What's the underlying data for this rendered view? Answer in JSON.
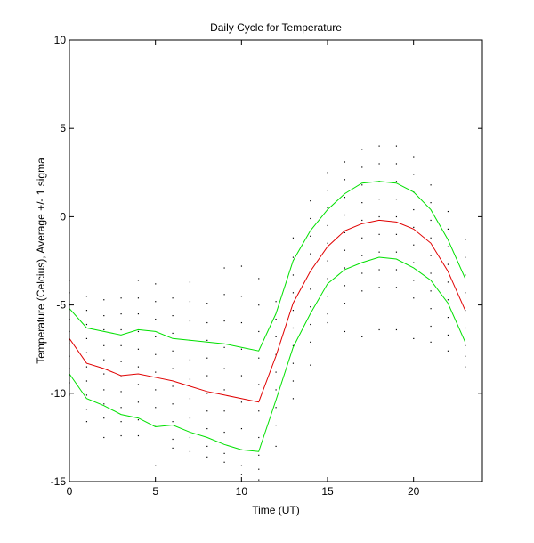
{
  "chart_data": {
    "type": "line",
    "title": "Daily Cycle for Temperature",
    "xlabel": "Time (UT)",
    "ylabel": "Temperature (Celcius), Average +/- 1 sigma",
    "xlim": [
      0,
      24
    ],
    "ylim": [
      -15,
      10
    ],
    "xticks": [
      0,
      5,
      10,
      15,
      20
    ],
    "yticks": [
      -15,
      -10,
      -5,
      0,
      5,
      10
    ],
    "grid": false,
    "x": [
      0,
      1,
      2,
      3,
      4,
      5,
      6,
      7,
      8,
      9,
      10,
      11,
      12,
      13,
      14,
      15,
      16,
      17,
      18,
      19,
      20,
      21,
      22,
      23
    ],
    "series": [
      {
        "color": "#00e000",
        "values": [
          -5.2,
          -6.3,
          -6.5,
          -6.7,
          -6.4,
          -6.5,
          -6.9,
          -7.0,
          -7.1,
          -7.2,
          -7.4,
          -7.6,
          -5.5,
          -2.5,
          -0.8,
          0.4,
          1.3,
          1.9,
          2.0,
          1.9,
          1.4,
          0.4,
          -1.3,
          -3.5
        ]
      },
      {
        "color": "#e00000",
        "values": [
          -6.9,
          -8.3,
          -8.6,
          -9.0,
          -8.9,
          -9.1,
          -9.3,
          -9.6,
          -9.9,
          -10.1,
          -10.3,
          -10.5,
          -7.9,
          -4.9,
          -3.1,
          -1.7,
          -0.8,
          -0.4,
          -0.2,
          -0.3,
          -0.7,
          -1.5,
          -3.1,
          -5.3
        ]
      },
      {
        "color": "#00e000",
        "values": [
          -8.9,
          -10.3,
          -10.7,
          -11.2,
          -11.4,
          -11.9,
          -11.8,
          -12.2,
          -12.5,
          -12.9,
          -13.2,
          -13.3,
          -10.4,
          -7.4,
          -5.5,
          -3.8,
          -3.0,
          -2.6,
          -2.3,
          -2.4,
          -2.9,
          -3.6,
          -4.9,
          -7.1
        ]
      }
    ],
    "scatter": {
      "color": "#000000",
      "points": [
        [
          0,
          -3.6
        ],
        [
          0,
          -4.3
        ],
        [
          0,
          -5.0
        ],
        [
          0,
          -5.8
        ],
        [
          0,
          -6.5
        ],
        [
          0,
          -7.2
        ],
        [
          0,
          -7.9
        ],
        [
          0,
          -8.6
        ],
        [
          0,
          -9.4
        ],
        [
          0,
          -10.1
        ],
        [
          1,
          -4.5
        ],
        [
          1,
          -5.3
        ],
        [
          1,
          -6.1
        ],
        [
          1,
          -6.9
        ],
        [
          1,
          -7.7
        ],
        [
          1,
          -8.5
        ],
        [
          1,
          -9.3
        ],
        [
          1,
          -10.1
        ],
        [
          1,
          -10.9
        ],
        [
          1,
          -11.6
        ],
        [
          2,
          -4.7
        ],
        [
          2,
          -5.6
        ],
        [
          2,
          -6.4
        ],
        [
          2,
          -7.3
        ],
        [
          2,
          -8.1
        ],
        [
          2,
          -8.9
        ],
        [
          2,
          -9.8
        ],
        [
          2,
          -10.6
        ],
        [
          2,
          -11.4
        ],
        [
          2,
          -12.5
        ],
        [
          3,
          -4.6
        ],
        [
          3,
          -5.5
        ],
        [
          3,
          -6.4
        ],
        [
          3,
          -7.3
        ],
        [
          3,
          -8.2
        ],
        [
          3,
          -9.0
        ],
        [
          3,
          -9.9
        ],
        [
          3,
          -10.8
        ],
        [
          3,
          -11.6
        ],
        [
          3,
          -12.4
        ],
        [
          4,
          -3.6
        ],
        [
          4,
          -4.6
        ],
        [
          4,
          -5.5
        ],
        [
          4,
          -6.5
        ],
        [
          4,
          -7.5
        ],
        [
          4,
          -8.5
        ],
        [
          4,
          -9.5
        ],
        [
          4,
          -10.5
        ],
        [
          4,
          -11.5
        ],
        [
          4,
          -12.4
        ],
        [
          5,
          -3.8
        ],
        [
          5,
          -4.8
        ],
        [
          5,
          -5.8
        ],
        [
          5,
          -6.8
        ],
        [
          5,
          -7.8
        ],
        [
          5,
          -8.8
        ],
        [
          5,
          -9.8
        ],
        [
          5,
          -10.8
        ],
        [
          5,
          -11.8
        ],
        [
          5,
          -14.1
        ],
        [
          6,
          -4.6
        ],
        [
          6,
          -5.6
        ],
        [
          6,
          -6.6
        ],
        [
          6,
          -7.6
        ],
        [
          6,
          -8.6
        ],
        [
          6,
          -9.6
        ],
        [
          6,
          -10.6
        ],
        [
          6,
          -11.6
        ],
        [
          6,
          -12.6
        ],
        [
          6,
          -13.1
        ],
        [
          7,
          -3.7
        ],
        [
          7,
          -4.8
        ],
        [
          7,
          -5.9
        ],
        [
          7,
          -7.0
        ],
        [
          7,
          -8.1
        ],
        [
          7,
          -9.2
        ],
        [
          7,
          -10.3
        ],
        [
          7,
          -11.4
        ],
        [
          7,
          -12.5
        ],
        [
          7,
          -13.3
        ],
        [
          8,
          -4.9
        ],
        [
          8,
          -6.0
        ],
        [
          8,
          -7.0
        ],
        [
          8,
          -8.0
        ],
        [
          8,
          -9.0
        ],
        [
          8,
          -10.0
        ],
        [
          8,
          -11.0
        ],
        [
          8,
          -12.0
        ],
        [
          8,
          -13.0
        ],
        [
          8,
          -13.6
        ],
        [
          9,
          -2.9
        ],
        [
          9,
          -4.4
        ],
        [
          9,
          -5.9
        ],
        [
          9,
          -7.4
        ],
        [
          9,
          -8.6
        ],
        [
          9,
          -9.8
        ],
        [
          9,
          -11.0
        ],
        [
          9,
          -12.2
        ],
        [
          9,
          -13.4
        ],
        [
          9,
          -13.9
        ],
        [
          10,
          -2.8
        ],
        [
          10,
          -4.5
        ],
        [
          10,
          -6.0
        ],
        [
          10,
          -7.5
        ],
        [
          10,
          -9.0
        ],
        [
          10,
          -10.5
        ],
        [
          10,
          -12.0
        ],
        [
          10,
          -13.2
        ],
        [
          10,
          -14.1
        ],
        [
          10,
          -14.6
        ],
        [
          11,
          -3.5
        ],
        [
          11,
          -5.0
        ],
        [
          11,
          -6.5
        ],
        [
          11,
          -8.0
        ],
        [
          11,
          -9.5
        ],
        [
          11,
          -11.0
        ],
        [
          11,
          -12.5
        ],
        [
          11,
          -13.5
        ],
        [
          11,
          -14.3
        ],
        [
          11,
          -14.9
        ],
        [
          12,
          -4.8
        ],
        [
          12,
          -5.8
        ],
        [
          12,
          -6.8
        ],
        [
          12,
          -7.8
        ],
        [
          12,
          -8.8
        ],
        [
          12,
          -9.8
        ],
        [
          12,
          -10.8
        ],
        [
          12,
          -11.8
        ],
        [
          12,
          -13.0
        ],
        [
          13,
          -1.2
        ],
        [
          13,
          -2.3
        ],
        [
          13,
          -3.3
        ],
        [
          13,
          -4.3
        ],
        [
          13,
          -5.3
        ],
        [
          13,
          -6.3
        ],
        [
          13,
          -7.3
        ],
        [
          13,
          -8.3
        ],
        [
          13,
          -9.3
        ],
        [
          13,
          -10.3
        ],
        [
          14,
          0.9
        ],
        [
          14,
          -0.1
        ],
        [
          14,
          -1.1
        ],
        [
          14,
          -2.1
        ],
        [
          14,
          -3.1
        ],
        [
          14,
          -4.1
        ],
        [
          14,
          -5.1
        ],
        [
          14,
          -6.1
        ],
        [
          14,
          -7.1
        ],
        [
          14,
          -8.4
        ],
        [
          15,
          2.5
        ],
        [
          15,
          1.5
        ],
        [
          15,
          0.5
        ],
        [
          15,
          -0.5
        ],
        [
          15,
          -1.5
        ],
        [
          15,
          -2.5
        ],
        [
          15,
          -3.5
        ],
        [
          15,
          -4.5
        ],
        [
          15,
          -5.5
        ],
        [
          15,
          -6.0
        ],
        [
          16,
          3.1
        ],
        [
          16,
          2.1
        ],
        [
          16,
          1.1
        ],
        [
          16,
          0.1
        ],
        [
          16,
          -0.9
        ],
        [
          16,
          -1.9
        ],
        [
          16,
          -2.9
        ],
        [
          16,
          -3.9
        ],
        [
          16,
          -4.9
        ],
        [
          16,
          -6.5
        ],
        [
          17,
          3.8
        ],
        [
          17,
          2.8
        ],
        [
          17,
          1.8
        ],
        [
          17,
          0.8
        ],
        [
          17,
          -0.2
        ],
        [
          17,
          -1.2
        ],
        [
          17,
          -2.2
        ],
        [
          17,
          -3.2
        ],
        [
          17,
          -4.2
        ],
        [
          17,
          -6.8
        ],
        [
          18,
          4.0
        ],
        [
          18,
          3.0
        ],
        [
          18,
          2.0
        ],
        [
          18,
          1.0
        ],
        [
          18,
          0.0
        ],
        [
          18,
          -1.0
        ],
        [
          18,
          -2.0
        ],
        [
          18,
          -3.0
        ],
        [
          18,
          -4.0
        ],
        [
          18,
          -6.4
        ],
        [
          19,
          4.0
        ],
        [
          19,
          3.0
        ],
        [
          19,
          2.0
        ],
        [
          19,
          1.0
        ],
        [
          19,
          0.0
        ],
        [
          19,
          -1.0
        ],
        [
          19,
          -2.0
        ],
        [
          19,
          -3.0
        ],
        [
          19,
          -4.0
        ],
        [
          19,
          -6.4
        ],
        [
          20,
          3.4
        ],
        [
          20,
          2.4
        ],
        [
          20,
          1.4
        ],
        [
          20,
          0.4
        ],
        [
          20,
          -0.6
        ],
        [
          20,
          -1.6
        ],
        [
          20,
          -2.6
        ],
        [
          20,
          -3.6
        ],
        [
          20,
          -4.6
        ],
        [
          20,
          -6.9
        ],
        [
          21,
          1.8
        ],
        [
          21,
          0.8
        ],
        [
          21,
          -0.2
        ],
        [
          21,
          -1.2
        ],
        [
          21,
          -2.2
        ],
        [
          21,
          -3.2
        ],
        [
          21,
          -4.2
        ],
        [
          21,
          -5.2
        ],
        [
          21,
          -6.2
        ],
        [
          21,
          -7.1
        ],
        [
          22,
          0.3
        ],
        [
          22,
          -0.7
        ],
        [
          22,
          -1.7
        ],
        [
          22,
          -2.7
        ],
        [
          22,
          -3.7
        ],
        [
          22,
          -4.7
        ],
        [
          22,
          -5.7
        ],
        [
          22,
          -6.7
        ],
        [
          22,
          -7.6
        ],
        [
          23,
          -1.3
        ],
        [
          23,
          -2.3
        ],
        [
          23,
          -3.3
        ],
        [
          23,
          -4.3
        ],
        [
          23,
          -5.3
        ],
        [
          23,
          -6.3
        ],
        [
          23,
          -7.3
        ],
        [
          23,
          -7.9
        ],
        [
          23,
          -8.5
        ]
      ]
    }
  }
}
